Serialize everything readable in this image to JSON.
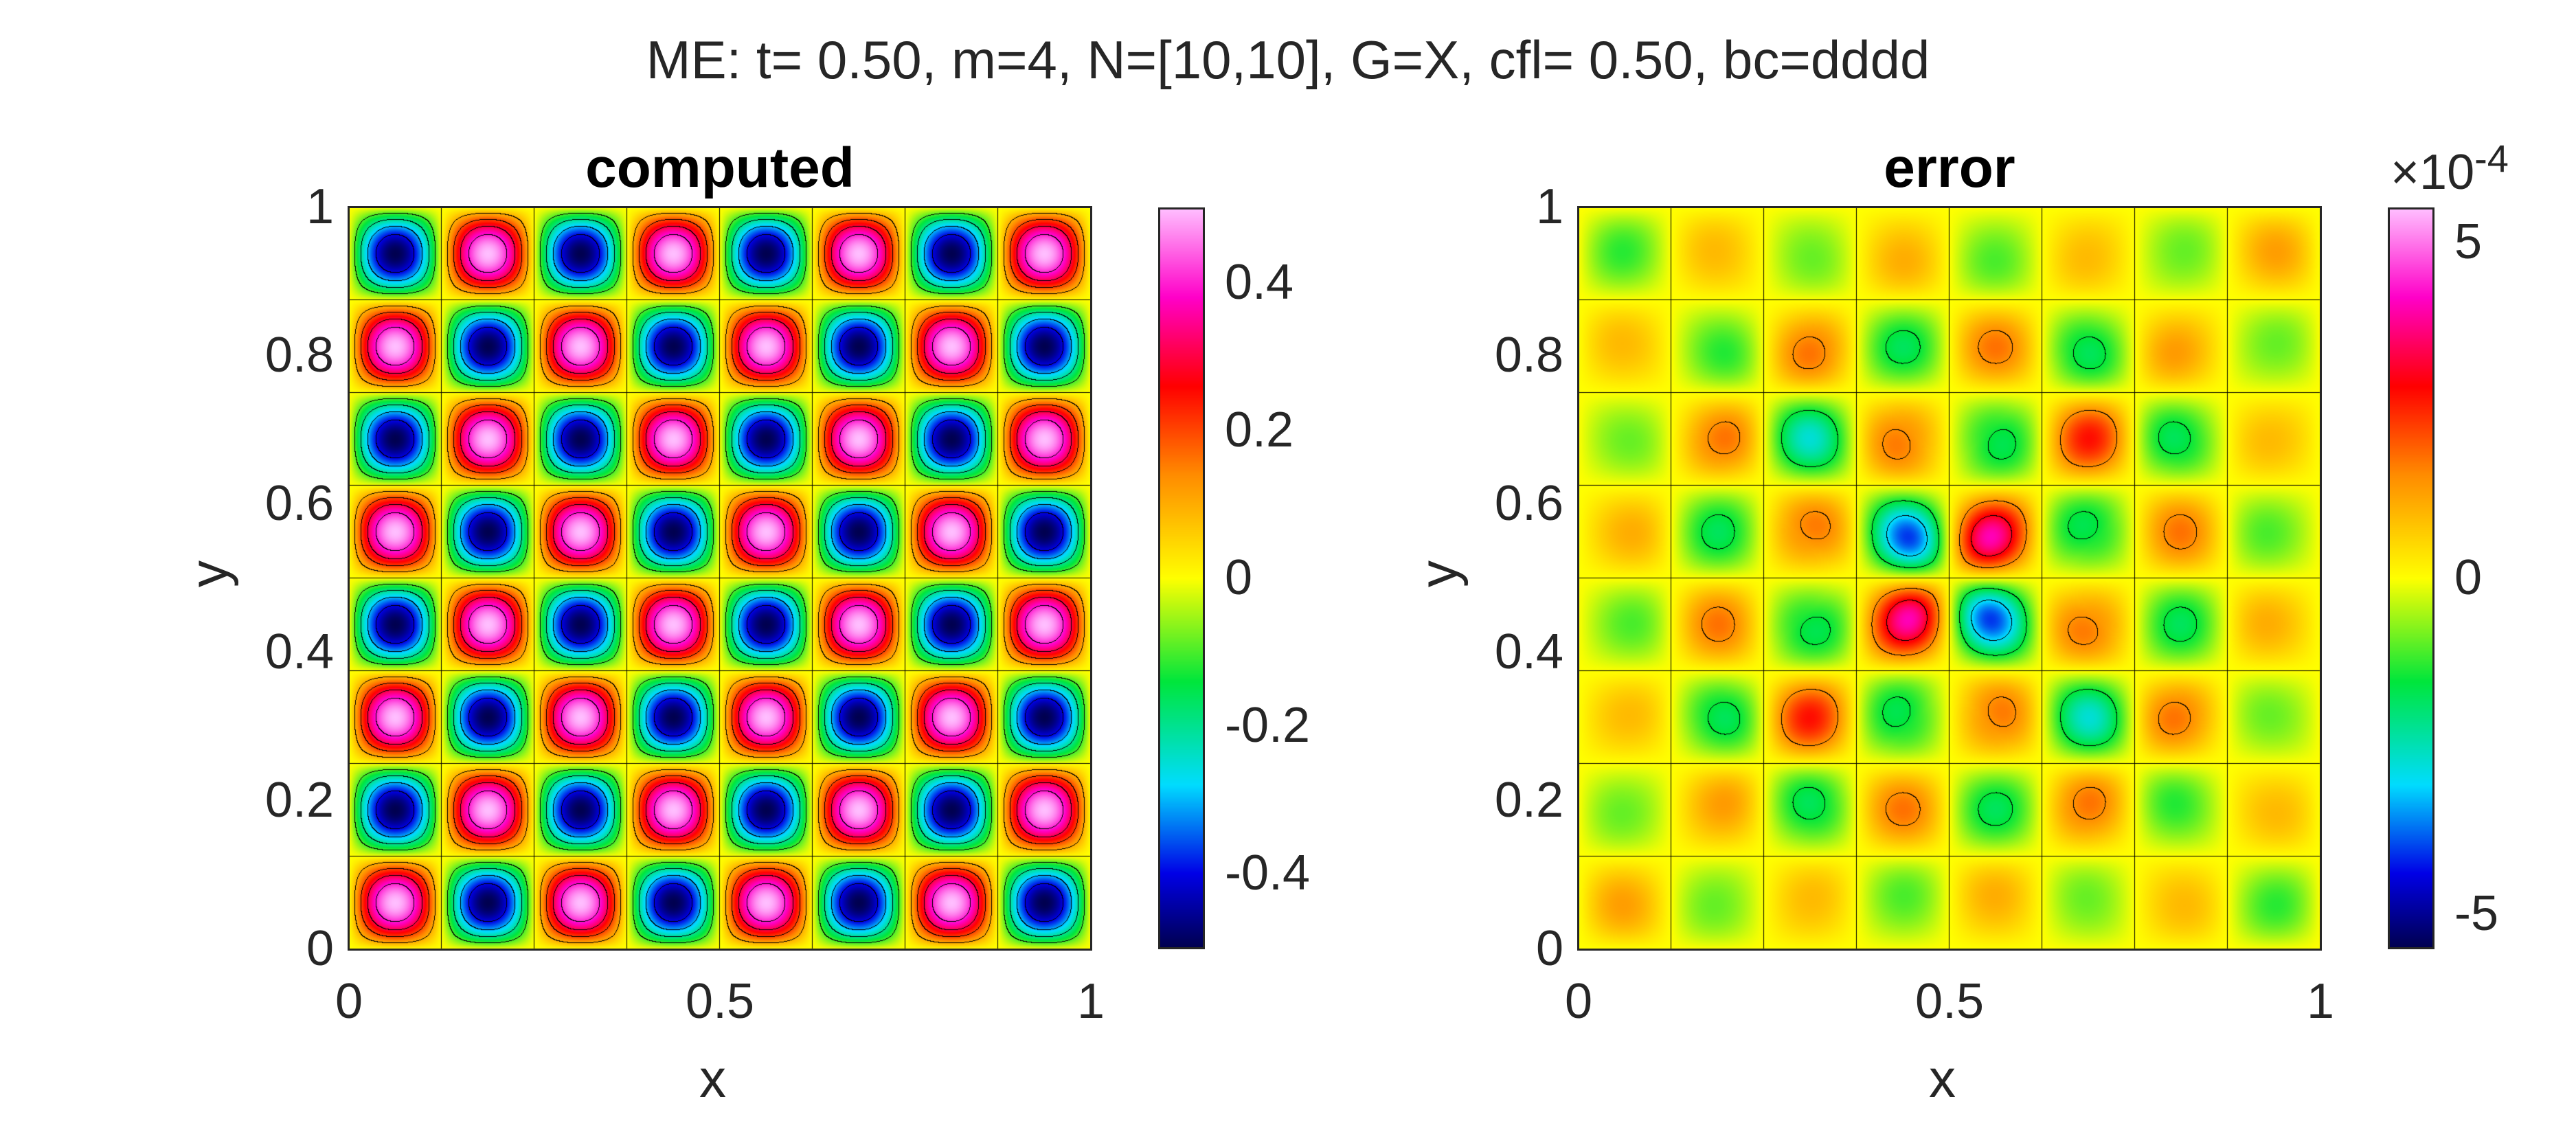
{
  "figure": {
    "suptitle": "ME: t= 0.50, m=4, N=[10,10], G=X, cfl= 0.50, bc=dddd"
  },
  "chart_data": [
    {
      "type": "heatmap",
      "title": "computed",
      "xlabel": "x",
      "ylabel": "y",
      "xlim": [
        0,
        1
      ],
      "ylim": [
        0,
        1
      ],
      "x_ticks": [
        "0",
        "0.5",
        "1"
      ],
      "y_ticks": [
        "0",
        "0.2",
        "0.4",
        "0.6",
        "0.8",
        "1"
      ],
      "colormap": "jetw",
      "contours": true,
      "field": "0.5*sin(8*pi*x)*sin(8*pi*y)",
      "clim": [
        -0.5,
        0.5
      ],
      "colorbar": {
        "ticks": [
          "-0.4",
          "-0.2",
          "0",
          "0.2",
          "0.4"
        ],
        "tick_values": [
          -0.4,
          -0.2,
          0,
          0.2,
          0.4
        ]
      }
    },
    {
      "type": "heatmap",
      "title": "error",
      "xlabel": "x",
      "ylabel": "y",
      "xlim": [
        0,
        1
      ],
      "ylim": [
        0,
        1
      ],
      "x_ticks": [
        "0",
        "0.5",
        "1"
      ],
      "y_ticks": [
        "0",
        "0.2",
        "0.4",
        "0.6",
        "0.8",
        "1"
      ],
      "colormap": "jetw",
      "contours": true,
      "field": "error pattern, max |e| approx 5.5e-4",
      "clim": [
        -5.5,
        5.5
      ],
      "colorbar": {
        "ticks": [
          "-5",
          "0",
          "5"
        ],
        "tick_values": [
          -5,
          0,
          5
        ],
        "exponent_base": "×10",
        "exponent": "-4"
      }
    }
  ]
}
